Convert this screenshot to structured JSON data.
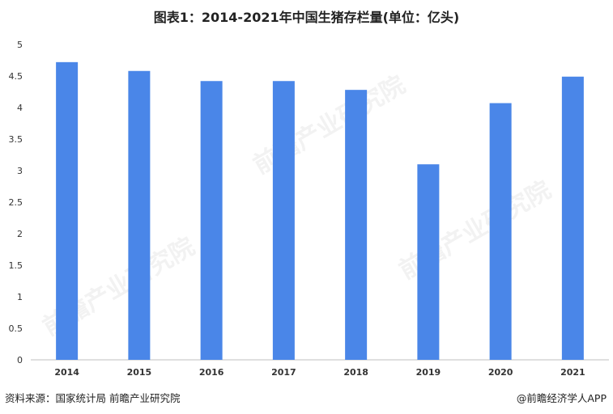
{
  "title": "图表1：2014-2021年中国生猪存栏量(单位：亿头)",
  "footer": {
    "source": "资料来源：国家统计局 前瞻产业研究院",
    "brand": "@前瞻经济学人APP"
  },
  "watermark_text": "前瞻产业研究院",
  "colors": {
    "bar": "#4A86E8",
    "axis": "#bfbfbf",
    "text": "#333333"
  },
  "chart_data": {
    "type": "bar",
    "title": "图表1：2014-2021年中国生猪存栏量(单位：亿头)",
    "categories": [
      "2014",
      "2015",
      "2016",
      "2017",
      "2018",
      "2019",
      "2020",
      "2021"
    ],
    "values": [
      4.72,
      4.58,
      4.42,
      4.42,
      4.28,
      3.1,
      4.07,
      4.49
    ],
    "ylim": [
      0,
      5
    ],
    "yticks": [
      0,
      0.5,
      1,
      1.5,
      2,
      2.5,
      3,
      3.5,
      4,
      4.5,
      5
    ],
    "ytick_labels": [
      "0",
      "0.5",
      "1",
      "1.5",
      "2",
      "2.5",
      "3",
      "3.5",
      "4",
      "4.5",
      "5"
    ],
    "xlabel": "",
    "ylabel": "",
    "grid": false,
    "legend": "none"
  }
}
